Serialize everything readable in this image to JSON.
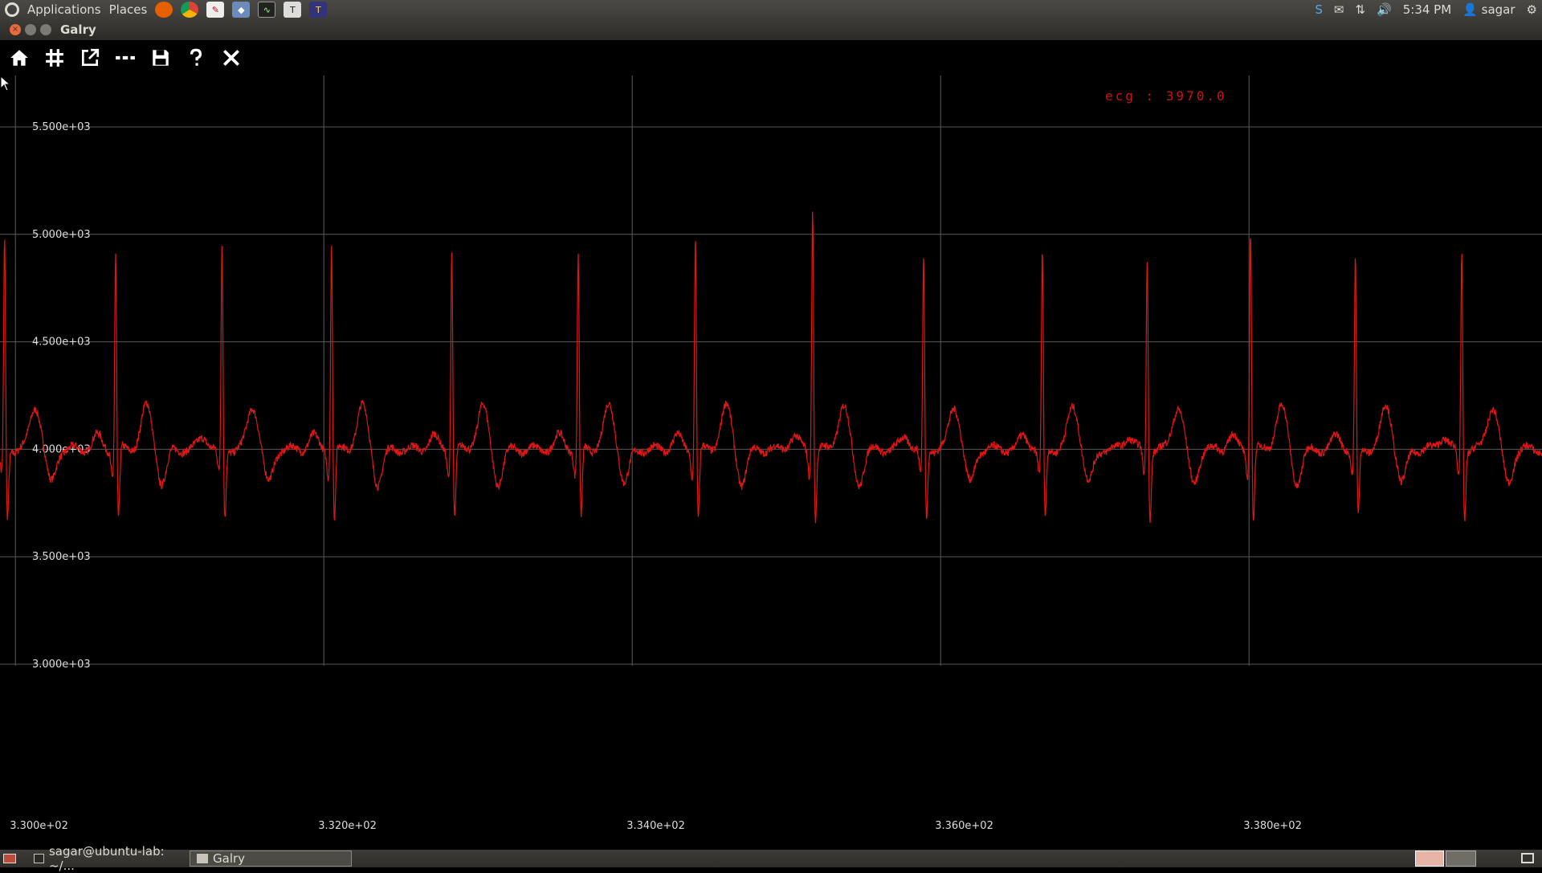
{
  "top_panel": {
    "menus": [
      "Applications",
      "Places"
    ],
    "launchers": [
      "firefox-icon",
      "chrome-icon",
      "pdf-viewer-icon",
      "virtualbox-icon",
      "system-monitor-icon",
      "latex-editor-icon",
      "texmaker-icon"
    ],
    "clock": "5:34 PM",
    "user": "sagar",
    "tray": [
      "skype-icon",
      "chat-status-icon",
      "mail-icon",
      "network-icon",
      "volume-icon",
      "session-gear-icon"
    ]
  },
  "window": {
    "title": "Galry"
  },
  "toolbar": {
    "buttons": [
      "home-icon",
      "grid-icon",
      "fullscreen-icon",
      "dash-icon",
      "save-icon",
      "help-icon",
      "close-icon"
    ]
  },
  "plot": {
    "info_label": "ecg : 3970.0",
    "y_ticks": [
      "5.500e+03",
      "5.000e+03",
      "4.500e+03",
      "4.000e+03",
      "3.500e+03",
      "3.000e+03"
    ],
    "x_ticks": [
      "3.300e+02",
      "3.320e+02",
      "3.340e+02",
      "3.360e+02",
      "3.380e+02"
    ],
    "colors": {
      "signal": "#e01515",
      "grid": "#5a5a5a",
      "background": "#000000"
    }
  },
  "chart_data": {
    "type": "line",
    "title": "",
    "xlabel": "",
    "ylabel": "",
    "series": [
      {
        "name": "ecg",
        "color": "#e01515"
      }
    ],
    "x_range": [
      329.9,
      339.9
    ],
    "ylim": [
      3000,
      5800
    ],
    "beat_times": [
      329.93,
      330.65,
      331.34,
      332.05,
      332.83,
      333.65,
      334.41,
      335.17,
      335.89,
      336.66,
      337.34,
      338.01,
      338.69,
      339.38
    ],
    "r_peaks": [
      5010,
      4950,
      4990,
      4990,
      4980,
      4950,
      5040,
      5160,
      4920,
      4950,
      4950,
      5070,
      4920,
      4950
    ],
    "baseline": 4000,
    "current_value": 3970.0
  },
  "bottom_panel": {
    "tasks": [
      {
        "label": "sagar@ubuntu-lab: ~/...",
        "icon": "terminal-icon"
      },
      {
        "label": "Galry",
        "icon": "window-icon"
      }
    ]
  }
}
